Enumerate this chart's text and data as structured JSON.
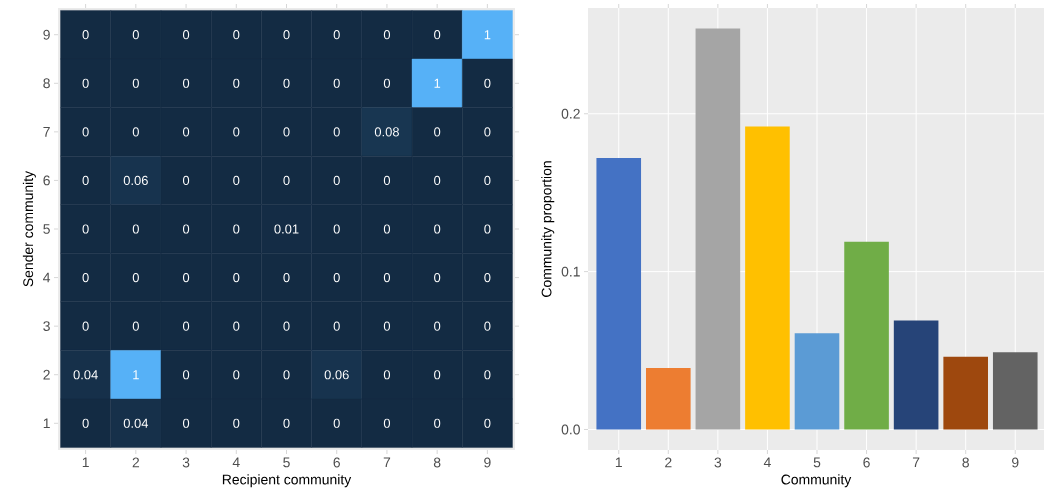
{
  "chart_data": [
    {
      "type": "heatmap",
      "xlabel": "Recipient community",
      "ylabel": "Sender community",
      "categories": [
        "1",
        "2",
        "3",
        "4",
        "5",
        "6",
        "7",
        "8",
        "9"
      ],
      "y_categories": [
        "9",
        "8",
        "7",
        "6",
        "5",
        "4",
        "3",
        "2",
        "1"
      ],
      "cells": [
        [
          0,
          0,
          0,
          0,
          0,
          0,
          0,
          0,
          1
        ],
        [
          0,
          0,
          0,
          0,
          0,
          0,
          0,
          1,
          0
        ],
        [
          0,
          0,
          0,
          0,
          0,
          0,
          0.08,
          0,
          0
        ],
        [
          0,
          0.06,
          0,
          0,
          0,
          0,
          0,
          0,
          0
        ],
        [
          0,
          0,
          0,
          0,
          0.01,
          0,
          0,
          0,
          0
        ],
        [
          0,
          0,
          0,
          0,
          0,
          0,
          0,
          0,
          0
        ],
        [
          0,
          0,
          0,
          0,
          0,
          0,
          0,
          0,
          0
        ],
        [
          0.04,
          1,
          0,
          0,
          0,
          0.06,
          0,
          0,
          0
        ],
        [
          0,
          0.04,
          0,
          0,
          0,
          0,
          0,
          0,
          0
        ]
      ],
      "colors": [
        "#132b43",
        "#56b1f7"
      ],
      "data_labels": true
    },
    {
      "type": "bar",
      "xlabel": "Community",
      "ylabel": "Community proportion",
      "categories": [
        "1",
        "2",
        "3",
        "4",
        "5",
        "6",
        "7",
        "8",
        "9"
      ],
      "values": [
        0.172,
        0.039,
        0.254,
        0.192,
        0.061,
        0.119,
        0.069,
        0.046,
        0.049
      ],
      "colors": [
        "#4472c4",
        "#ed7d31",
        "#a5a5a5",
        "#ffc000",
        "#5b9bd5",
        "#70ad47",
        "#264478",
        "#9e480e",
        "#636363"
      ],
      "ylim": [
        -0.013,
        0.267
      ],
      "yticks": [
        {
          "value": 0,
          "label": "0.0"
        },
        0.1,
        0.2
      ],
      "grid": true
    }
  ]
}
